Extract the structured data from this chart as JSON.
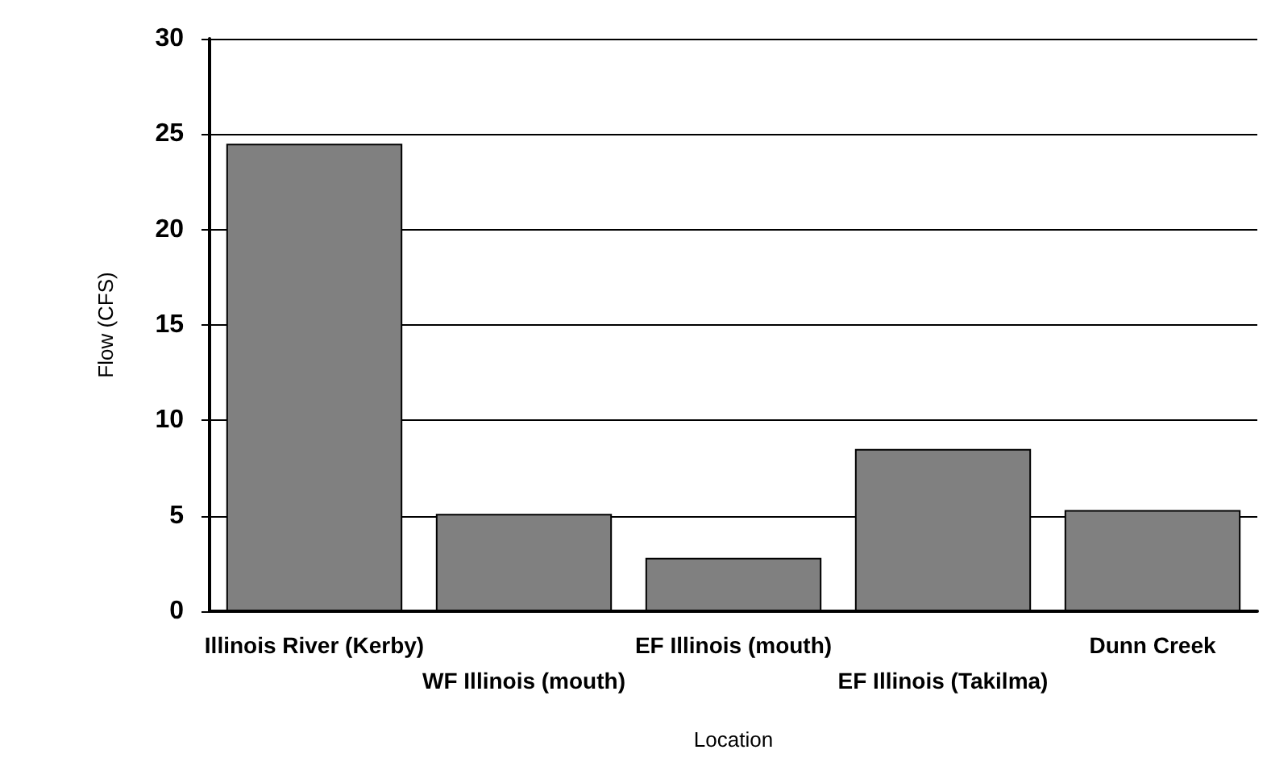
{
  "chart_data": {
    "type": "bar",
    "xlabel": "Location",
    "ylabel": "Flow (CFS)",
    "categories": [
      "Illinois River (Kerby)",
      "WF Illinois (mouth)",
      "EF Illinois (mouth)",
      "EF Illinois (Takilma)",
      "Dunn Creek"
    ],
    "values": [
      24.5,
      5.1,
      2.8,
      8.5,
      5.3
    ],
    "color": "#808080",
    "ylim": [
      0,
      30
    ],
    "yticks": [
      0,
      5,
      10,
      15,
      20,
      25,
      30
    ],
    "grid": "y"
  }
}
